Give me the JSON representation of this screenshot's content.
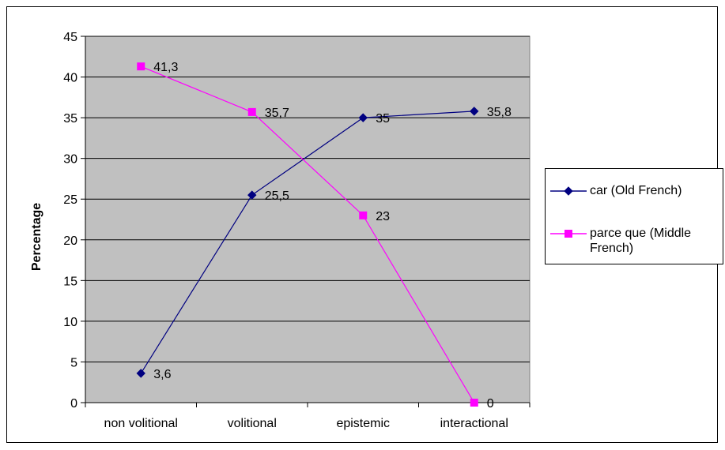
{
  "chart_data": {
    "type": "line",
    "title": "",
    "xlabel": "",
    "ylabel": "Percentage",
    "ylim": [
      0,
      45
    ],
    "yticks": [
      0,
      5,
      10,
      15,
      20,
      25,
      30,
      35,
      40,
      45
    ],
    "grid": true,
    "legend_position": "right",
    "categories": [
      "non volitional",
      "volitional",
      "epistemic",
      "interactional"
    ],
    "series": [
      {
        "name": "car (Old French)",
        "values": [
          3.6,
          25.5,
          35,
          35.8
        ],
        "labels": [
          "3,6",
          "25,5",
          "35",
          "35,8"
        ],
        "color": "#000080",
        "marker": "diamond"
      },
      {
        "name": "parce que (Middle French)",
        "name_lines": [
          "parce que (Middle",
          "French)"
        ],
        "values": [
          41.3,
          35.7,
          23,
          0
        ],
        "labels": [
          "41,3",
          "35,7",
          "23",
          "0"
        ],
        "color": "#ff00ff",
        "marker": "square"
      }
    ],
    "plot_background": "#c0c0c0"
  }
}
